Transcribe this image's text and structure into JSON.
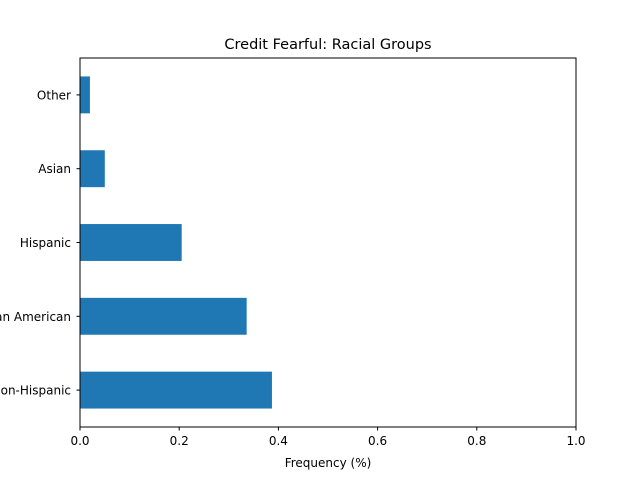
{
  "chart_data": {
    "type": "bar",
    "orientation": "horizontal",
    "title": "Credit Fearful: Racial Groups",
    "xlabel": "Frequency (%)",
    "ylabel": "",
    "categories": [
      "non-Hispanic",
      "African American",
      "Hispanic",
      "Asian",
      "Other"
    ],
    "values": [
      0.387,
      0.336,
      0.205,
      0.05,
      0.02
    ],
    "xlim": [
      0,
      1
    ],
    "xticks": [
      "0.0",
      "0.2",
      "0.4",
      "0.6",
      "0.8",
      "1.0"
    ],
    "bar_color": "#1f77b4",
    "grid": false,
    "legend": "none"
  }
}
